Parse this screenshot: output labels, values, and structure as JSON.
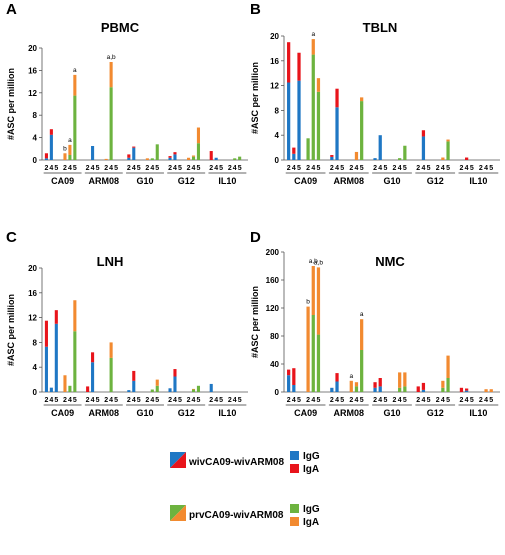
{
  "colors": {
    "wiv_igg": "#1f77c4",
    "wiv_iga": "#e8141b",
    "prv_igg": "#6db33f",
    "prv_iga": "#f28a30"
  },
  "legend": {
    "groups": [
      {
        "label": "wivCA09-wivARM08",
        "igg": "IgG",
        "iga": "IgA",
        "igg_color": "#1f77c4",
        "iga_color": "#e8141b"
      },
      {
        "label": "prvCA09-wivARM08",
        "igg": "IgG",
        "iga": "IgA",
        "igg_color": "#6db33f",
        "iga_color": "#f28a30"
      }
    ]
  },
  "chart_data": [
    {
      "letter": "A",
      "title": "PBMC",
      "type": "bar",
      "ylabel": "#ASC per million",
      "ylim": [
        0,
        20
      ],
      "yticks": [
        0,
        4,
        8,
        12,
        16,
        20
      ],
      "groups": [
        "CA09",
        "ARM08",
        "G10",
        "G12",
        "IL10"
      ],
      "days": [
        "2",
        "4",
        "5"
      ],
      "wiv_igg": [
        [
          0.3,
          4.5,
          0
        ],
        [
          0,
          2.5,
          0
        ],
        [
          0.4,
          2.2,
          0
        ],
        [
          0.4,
          1.0,
          0
        ],
        [
          0,
          0.4,
          0
        ]
      ],
      "wiv_iga": [
        [
          0.9,
          1.0,
          0
        ],
        [
          0,
          0,
          0
        ],
        [
          0.6,
          0.2,
          0
        ],
        [
          0.3,
          0.4,
          0
        ],
        [
          1.6,
          0,
          0
        ]
      ],
      "prv_igg": [
        [
          0,
          0.9,
          11.5
        ],
        [
          0,
          13.0,
          0
        ],
        [
          0,
          0.3,
          2.8
        ],
        [
          0,
          0.6,
          3.0
        ],
        [
          0,
          0.3,
          0.6
        ]
      ],
      "prv_iga": [
        [
          1.2,
          1.8,
          3.7
        ],
        [
          0.2,
          4.5,
          0
        ],
        [
          0.3,
          0,
          0
        ],
        [
          0.4,
          0.2,
          2.8
        ],
        [
          0,
          0,
          0
        ]
      ],
      "annotations": [
        {
          "group": 0,
          "day": 0,
          "text": "b"
        },
        {
          "group": 0,
          "day": 1,
          "text": "a"
        },
        {
          "group": 0,
          "day": 2,
          "text": "a"
        },
        {
          "group": 1,
          "day": 1,
          "text": "a,b"
        }
      ]
    },
    {
      "letter": "B",
      "title": "TBLN",
      "type": "bar",
      "ylabel": "#ASC per million",
      "ylim": [
        0,
        20
      ],
      "yticks": [
        0,
        4,
        8,
        12,
        16,
        20
      ],
      "groups": [
        "CA09",
        "ARM08",
        "G10",
        "G12",
        "IL10"
      ],
      "days": [
        "2",
        "4",
        "5"
      ],
      "wiv_igg": [
        [
          12.5,
          1.0,
          12.8
        ],
        [
          0.5,
          8.5,
          0
        ],
        [
          0.3,
          4.0,
          0
        ],
        [
          0,
          3.8,
          0
        ],
        [
          0,
          0,
          0
        ]
      ],
      "wiv_iga": [
        [
          6.5,
          1.0,
          4.5
        ],
        [
          0.3,
          3.0,
          0
        ],
        [
          0,
          0,
          0
        ],
        [
          0,
          1.0,
          0
        ],
        [
          0,
          0.4,
          0
        ]
      ],
      "prv_igg": [
        [
          3.5,
          17.0,
          11.0
        ],
        [
          0,
          0,
          9.5
        ],
        [
          0,
          0.3,
          2.3
        ],
        [
          0,
          0,
          3.0
        ],
        [
          0,
          0,
          0
        ]
      ],
      "prv_iga": [
        [
          0,
          2.5,
          2.2
        ],
        [
          0,
          1.3,
          0.6
        ],
        [
          0,
          0,
          0
        ],
        [
          0,
          0.4,
          0.3
        ],
        [
          0,
          0,
          0
        ]
      ],
      "annotations": [
        {
          "group": 0,
          "day": 1,
          "text": "a"
        }
      ]
    },
    {
      "letter": "C",
      "title": "LNH",
      "type": "bar",
      "ylabel": "#ASC per million",
      "ylim": [
        0,
        20
      ],
      "yticks": [
        0,
        4,
        8,
        12,
        16,
        20
      ],
      "groups": [
        "CA09",
        "ARM08",
        "G10",
        "G12",
        "IL10"
      ],
      "days": [
        "2",
        "4",
        "5"
      ],
      "wiv_igg": [
        [
          7.3,
          0.7,
          11.0
        ],
        [
          0,
          4.8,
          0
        ],
        [
          0.3,
          1.8,
          0
        ],
        [
          0.6,
          2.5,
          0
        ],
        [
          1.3,
          0,
          0
        ]
      ],
      "wiv_iga": [
        [
          4.2,
          0,
          2.2
        ],
        [
          0.9,
          1.6,
          0
        ],
        [
          0,
          1.6,
          0
        ],
        [
          0,
          1.2,
          0
        ],
        [
          0,
          0,
          0
        ]
      ],
      "prv_igg": [
        [
          0,
          1.0,
          9.8
        ],
        [
          0,
          5.5,
          0
        ],
        [
          0,
          0.4,
          1.0
        ],
        [
          0,
          0.4,
          1.0
        ],
        [
          0,
          0,
          0
        ]
      ],
      "prv_iga": [
        [
          2.7,
          0,
          5.0
        ],
        [
          0,
          2.5,
          0
        ],
        [
          0,
          0,
          1.0
        ],
        [
          0,
          0.1,
          0
        ],
        [
          0,
          0,
          0
        ]
      ],
      "annotations": []
    },
    {
      "letter": "D",
      "title": "NMC",
      "type": "bar",
      "ylabel": "#ASC per million",
      "ylim": [
        0,
        200
      ],
      "yticks": [
        0,
        40,
        80,
        120,
        160,
        200
      ],
      "groups": [
        "CA09",
        "ARM08",
        "G10",
        "G12",
        "IL10"
      ],
      "days": [
        "2",
        "4",
        "5"
      ],
      "wiv_igg": [
        [
          24,
          10,
          0
        ],
        [
          6,
          15,
          0
        ],
        [
          6,
          8,
          0
        ],
        [
          0,
          3,
          0
        ],
        [
          0,
          2,
          0
        ]
      ],
      "wiv_iga": [
        [
          8,
          24,
          0
        ],
        [
          0,
          12,
          0
        ],
        [
          8,
          12,
          0
        ],
        [
          8,
          10,
          0
        ],
        [
          6,
          3,
          0
        ]
      ],
      "prv_igg": [
        [
          0,
          110,
          82
        ],
        [
          0,
          8,
          60
        ],
        [
          0,
          6,
          8
        ],
        [
          0,
          6,
          20
        ],
        [
          0,
          0,
          0
        ]
      ],
      "prv_iga": [
        [
          122,
          70,
          96
        ],
        [
          16,
          6,
          44
        ],
        [
          0,
          22,
          20
        ],
        [
          0,
          10,
          32
        ],
        [
          0,
          4,
          4
        ]
      ],
      "annotations": [
        {
          "group": 0,
          "day": 0,
          "text": "b"
        },
        {
          "group": 0,
          "day": 1,
          "text": "a,b"
        },
        {
          "group": 0,
          "day": 2,
          "text": "a,b"
        },
        {
          "group": 1,
          "day": 0,
          "text": "a"
        },
        {
          "group": 1,
          "day": 2,
          "text": "a"
        }
      ]
    }
  ]
}
